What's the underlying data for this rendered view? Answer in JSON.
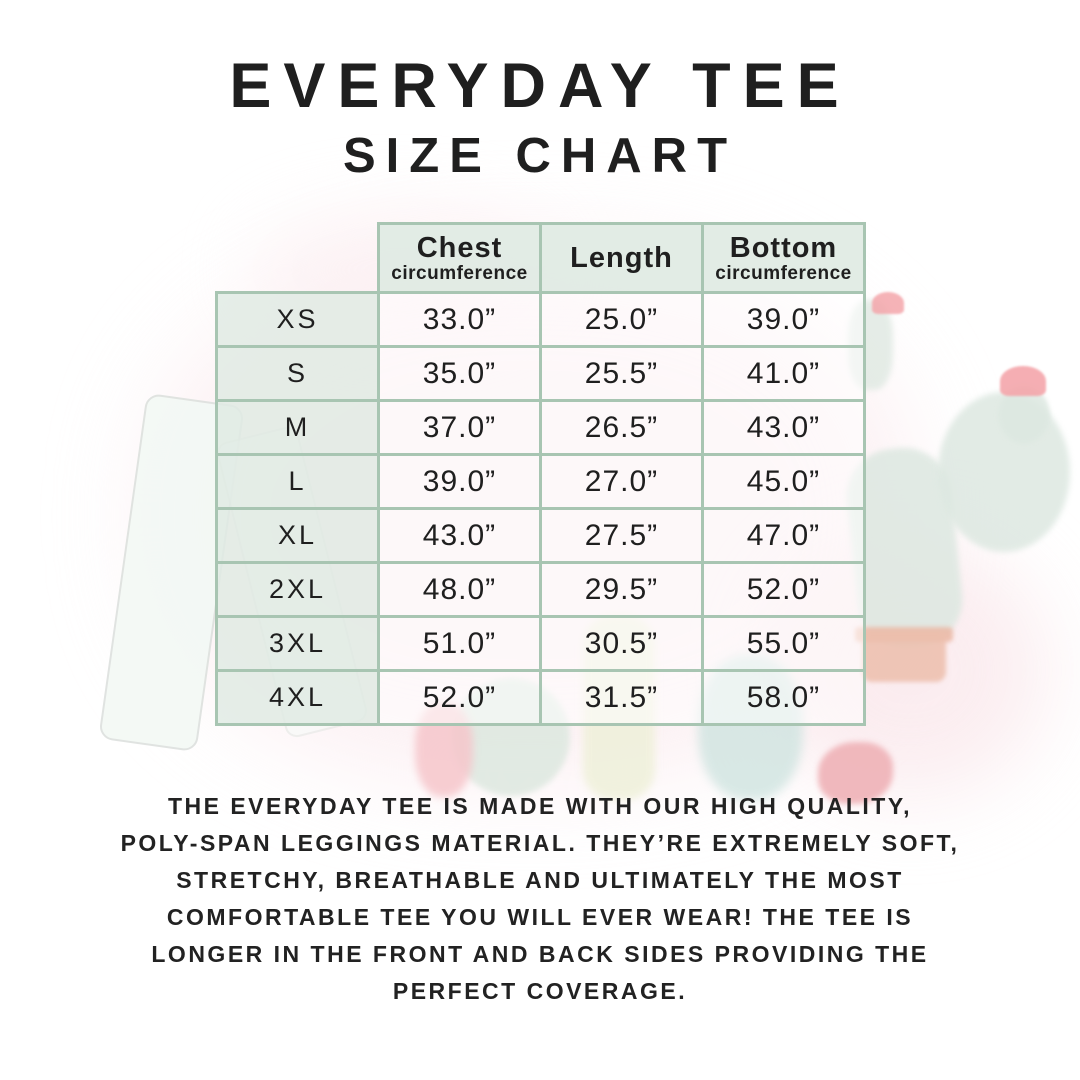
{
  "chart_data": {
    "type": "table",
    "title": "EVERYDAY TEE",
    "subtitle": "SIZE CHART",
    "columns": [
      {
        "label": "",
        "sub": ""
      },
      {
        "label": "Chest",
        "sub": "circumference"
      },
      {
        "label": "Length",
        "sub": ""
      },
      {
        "label": "Bottom",
        "sub": "circumference"
      }
    ],
    "rows": [
      [
        "XS",
        "33.0”",
        "25.0”",
        "39.0”"
      ],
      [
        "S",
        "35.0”",
        "25.5”",
        "41.0”"
      ],
      [
        "M",
        "37.0”",
        "26.5”",
        "43.0”"
      ],
      [
        "L",
        "39.0”",
        "27.0”",
        "45.0”"
      ],
      [
        "XL",
        "43.0”",
        "27.5”",
        "47.0”"
      ],
      [
        "2XL",
        "48.0”",
        "29.5”",
        "52.0”"
      ],
      [
        "3XL",
        "51.0”",
        "30.5”",
        "55.0”"
      ],
      [
        "4XL",
        "52.0”",
        "31.5”",
        "58.0”"
      ]
    ]
  },
  "description": {
    "lines": [
      "THE EVERYDAY TEE IS MADE WITH OUR HIGH QUALITY,",
      "POLY-SPAN LEGGINGS MATERIAL. THEY’RE EXTREMELY SOFT,",
      "STRETCHY, BREATHABLE AND ULTIMATELY THE MOST",
      "COMFORTABLE TEE YOU WILL EVER WEAR! THE TEE IS",
      "LONGER IN THE FRONT AND BACK SIDES PROVIDING THE",
      "PERFECT COVERAGE."
    ]
  },
  "colors": {
    "text": "#1f1f1f",
    "table_border": "#a8c5b2",
    "header_cell_bg": "#e0eae3",
    "data_cell_bg": "#fdfefd",
    "watermark_green": "#dde8e1",
    "watermark_pink": "#fae8ec",
    "watermark_flower": "#f4a6ab",
    "watermark_pot": "#edbfad"
  }
}
